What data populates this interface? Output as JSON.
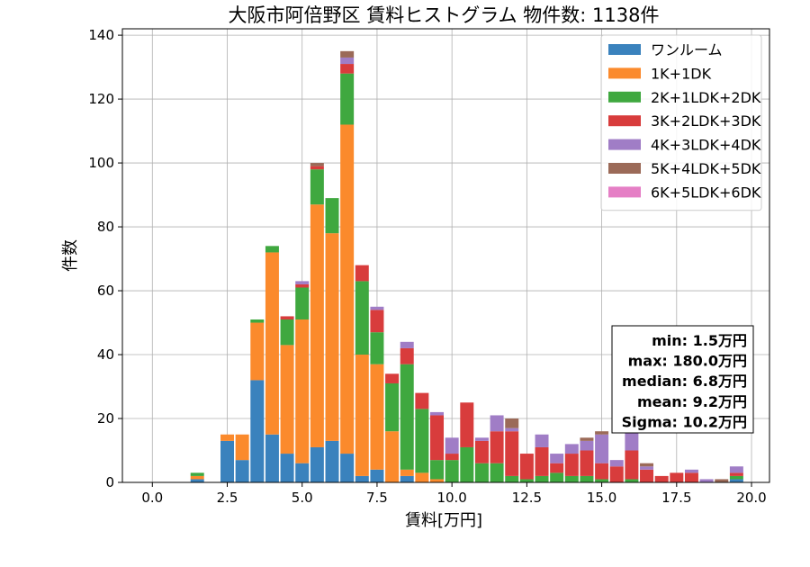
{
  "chart_data": {
    "type": "bar",
    "title": "大阪市阿倍野区 賃料ヒストグラム 物件数: 1138件",
    "xlabel": "賃料[万円]",
    "ylabel": "件数",
    "xlim": [
      -1,
      20.6
    ],
    "ylim": [
      0,
      142
    ],
    "grid": true,
    "bin_width": 0.5,
    "x_ticks": [
      "0.0",
      "2.5",
      "5.0",
      "7.5",
      "10.0",
      "12.5",
      "15.0",
      "17.5",
      "20.0"
    ],
    "y_ticks": [
      "0",
      "20",
      "40",
      "60",
      "80",
      "100",
      "120",
      "140"
    ],
    "legend_position": "top-right",
    "x": [
      1.5,
      2.5,
      3.0,
      3.5,
      4.0,
      4.5,
      5.0,
      5.5,
      6.0,
      6.5,
      7.0,
      7.5,
      8.0,
      8.5,
      9.0,
      9.5,
      10.0,
      10.5,
      11.0,
      11.5,
      12.0,
      12.5,
      13.0,
      13.5,
      14.0,
      14.5,
      15.0,
      15.5,
      16.0,
      16.5,
      17.0,
      17.5,
      18.0,
      18.5,
      19.0,
      19.5
    ],
    "series": [
      {
        "name": "ワンルーム",
        "color": "#3a82bd",
        "values": [
          1,
          13,
          7,
          32,
          15,
          9,
          6,
          11,
          13,
          9,
          2,
          4,
          0,
          2,
          0,
          0,
          0,
          0,
          0,
          0,
          0,
          0,
          0,
          0,
          0,
          0,
          0,
          0,
          0,
          0,
          0,
          0,
          0,
          0,
          0,
          1
        ]
      },
      {
        "name": "1K+1DK",
        "color": "#fb8a2c",
        "values": [
          1,
          2,
          8,
          18,
          57,
          34,
          45,
          76,
          65,
          103,
          38,
          33,
          16,
          2,
          3,
          1,
          0,
          0,
          0,
          0,
          0,
          0,
          0,
          0,
          0,
          0,
          0,
          0,
          0,
          0,
          0,
          0,
          0,
          0,
          0,
          0
        ]
      },
      {
        "name": "2K+1LDK+2DK",
        "color": "#3fa83f",
        "values": [
          1,
          0,
          0,
          1,
          2,
          8,
          10,
          11,
          11,
          16,
          23,
          10,
          15,
          33,
          20,
          6,
          7,
          11,
          6,
          6,
          2,
          1,
          2,
          3,
          2,
          2,
          1,
          0,
          1,
          0,
          0,
          0,
          0,
          0,
          0,
          1
        ]
      },
      {
        "name": "3K+2LDK+3DK",
        "color": "#d83c3c",
        "values": [
          0,
          0,
          0,
          0,
          0,
          1,
          1,
          1,
          0,
          3,
          5,
          7,
          3,
          5,
          5,
          14,
          2,
          14,
          7,
          10,
          14,
          8,
          9,
          3,
          7,
          8,
          5,
          5,
          9,
          4,
          2,
          3,
          3,
          0,
          0,
          1
        ]
      },
      {
        "name": "4K+3LDK+4DK",
        "color": "#a07dc6",
        "values": [
          0,
          0,
          0,
          0,
          0,
          0,
          1,
          0,
          0,
          2,
          0,
          1,
          0,
          2,
          0,
          1,
          5,
          0,
          1,
          5,
          1,
          0,
          4,
          3,
          3,
          3,
          9,
          2,
          6,
          1,
          0,
          0,
          1,
          1,
          0,
          2
        ]
      },
      {
        "name": "5K+4LDK+5DK",
        "color": "#9b6a58",
        "values": [
          0,
          0,
          0,
          0,
          0,
          0,
          0,
          1,
          0,
          2,
          0,
          0,
          0,
          0,
          0,
          0,
          0,
          0,
          0,
          0,
          3,
          0,
          0,
          0,
          0,
          1,
          1,
          0,
          0,
          1,
          0,
          0,
          0,
          0,
          1,
          0
        ]
      },
      {
        "name": "6K+5LDK+6DK",
        "color": "#e57fc5",
        "values": [
          0,
          0,
          0,
          0,
          0,
          0,
          0,
          0,
          0,
          0,
          0,
          0,
          0,
          0,
          0,
          0,
          0,
          0,
          0,
          0,
          0,
          0,
          0,
          0,
          0,
          0,
          0,
          0,
          0,
          0,
          0,
          0,
          0,
          0,
          0,
          0
        ]
      }
    ],
    "stats": [
      "min: 1.5万円",
      "max: 180.0万円",
      "median: 6.8万円",
      "mean: 9.2万円",
      "Sigma: 10.2万円"
    ]
  }
}
